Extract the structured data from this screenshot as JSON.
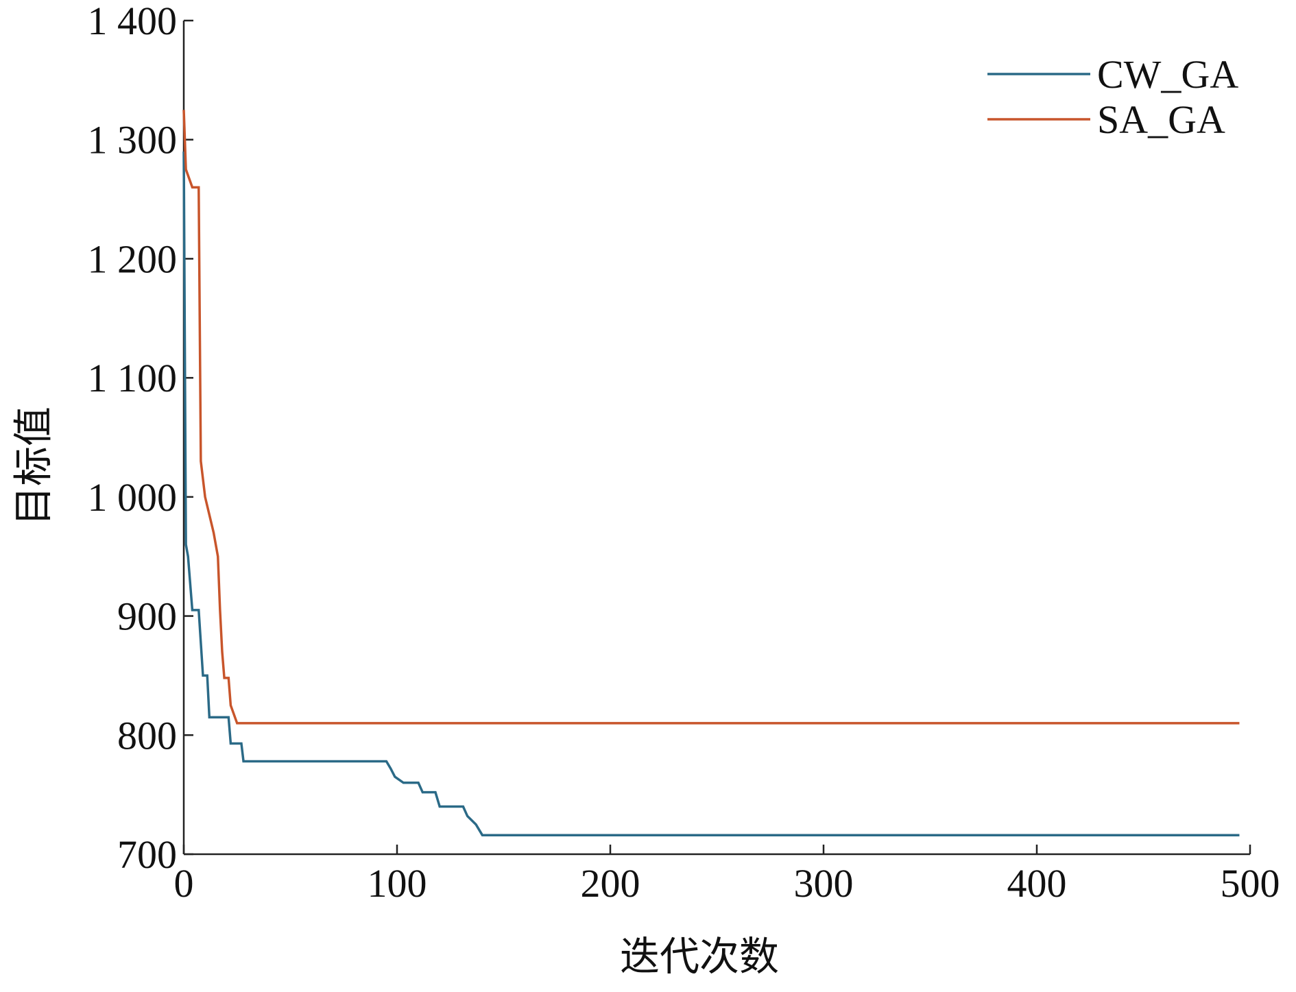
{
  "chart_data": {
    "type": "line",
    "x_label": "迭代次数",
    "y_label": "目标值",
    "xlim": [
      0,
      500
    ],
    "xticks": [
      0,
      100,
      200,
      300,
      400,
      500
    ],
    "ylim": [
      700,
      1400
    ],
    "yticks": [
      700,
      800,
      900,
      {
        "value": 1000,
        "label": "1 000"
      },
      {
        "value": 1100,
        "label": "1 100"
      },
      {
        "value": 1200,
        "label": "1 200"
      },
      {
        "value": 1300,
        "label": "1 300"
      },
      {
        "value": 1400,
        "label": "1 400"
      }
    ],
    "legend": "upper right",
    "series": [
      {
        "name": "CW_GA",
        "color": "#2b6a87",
        "x": [
          0,
          1,
          2,
          4,
          7,
          9,
          11,
          12,
          21,
          22,
          27,
          28,
          95,
          97,
          99,
          103,
          110,
          112,
          118,
          120,
          131,
          133,
          137,
          140,
          495
        ],
        "values": [
          1290,
          960,
          950,
          905,
          905,
          850,
          850,
          815,
          815,
          793,
          793,
          778,
          778,
          772,
          765,
          760,
          760,
          752,
          752,
          740,
          740,
          732,
          725,
          716,
          716
        ]
      },
      {
        "name": "SA_GA",
        "color": "#c8552b",
        "x": [
          0,
          1,
          3,
          4,
          7,
          8,
          10,
          12,
          14,
          16,
          17,
          18,
          19,
          21,
          22,
          23,
          25,
          495
        ],
        "values": [
          1325,
          1275,
          1265,
          1260,
          1260,
          1030,
          1000,
          985,
          970,
          950,
          905,
          870,
          848,
          848,
          825,
          820,
          810,
          810
        ]
      }
    ]
  }
}
